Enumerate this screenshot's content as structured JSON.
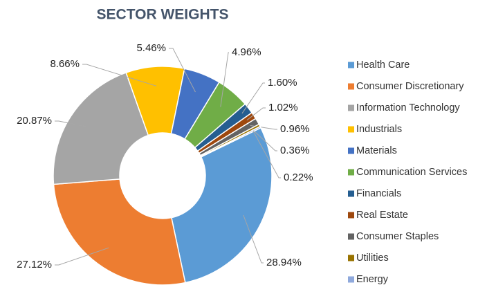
{
  "chart_data": {
    "type": "donut",
    "title": "SECTOR WEIGHTS",
    "categories": [
      "Health Care",
      "Consumer Discretionary",
      "Information Technology",
      "Industrials",
      "Materials",
      "Communication Services",
      "Financials",
      "Real Estate",
      "Consumer Staples",
      "Utilities",
      "Energy"
    ],
    "values": [
      28.94,
      27.12,
      20.87,
      8.66,
      5.46,
      4.96,
      1.6,
      1.02,
      0.96,
      0.36,
      0.22
    ],
    "value_labels": [
      "28.94%",
      "27.12%",
      "20.87%",
      "8.66%",
      "5.46%",
      "4.96%",
      "1.60%",
      "1.02%",
      "0.96%",
      "0.36%",
      "0.22%"
    ],
    "colors": [
      "#5b9bd5",
      "#ed7d31",
      "#a5a5a5",
      "#ffc000",
      "#4472c4",
      "#70ad47",
      "#255e91",
      "#9e480e",
      "#636363",
      "#997300",
      "#8fa9dc"
    ],
    "legend": "right"
  }
}
